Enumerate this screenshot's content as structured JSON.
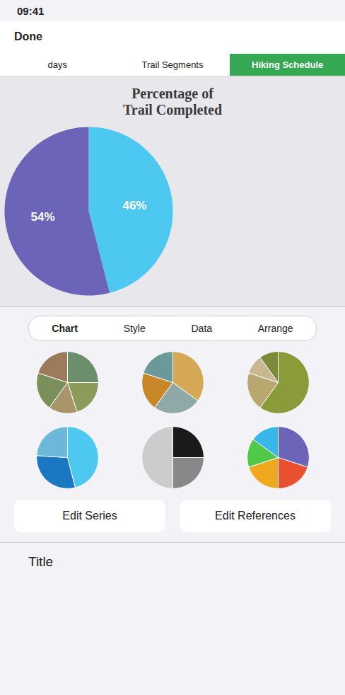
{
  "chart_data": [
    {
      "type": "pie",
      "title": "Percentage of\nTrail Completed",
      "values": [
        46,
        54
      ],
      "value_labels": [
        "46%",
        "54%"
      ],
      "colors": [
        "#4dc8f0",
        "#6b64b8"
      ],
      "data_labels": true,
      "annotations": [
        "09:41",
        "Done",
        "days",
        "Trail Segments",
        "Hiking Schedule",
        "Chart",
        "Style",
        "Data",
        "Arrange",
        "Edit Series",
        "Edit References",
        "Title"
      ]
    },
    {
      "type": "pie",
      "values": [
        25,
        20,
        15,
        20,
        20
      ],
      "colors": [
        "#6b8f6b",
        "#8b9b5a",
        "#a8956a",
        "#7a8f5a",
        "#9b7b5a"
      ]
    },
    {
      "type": "pie",
      "values": [
        35,
        25,
        20,
        20
      ],
      "colors": [
        "#d4a855",
        "#8fa8a8",
        "#c8882a",
        "#6b9898"
      ]
    },
    {
      "type": "pie",
      "values": [
        60,
        20,
        10,
        10
      ],
      "colors": [
        "#8b9b3a",
        "#b8a870",
        "#c8b890",
        "#7a8b3a"
      ]
    },
    {
      "type": "pie",
      "values": [
        46,
        30,
        24
      ],
      "colors": [
        "#4dc8f0",
        "#1a78c2",
        "#6bb8d8"
      ]
    },
    {
      "type": "pie",
      "values": [
        25,
        25,
        50
      ],
      "colors": [
        "#1a1a1a",
        "#888888",
        "#cccccc"
      ]
    },
    {
      "type": "pie",
      "values": [
        30,
        20,
        20,
        15,
        15
      ],
      "colors": [
        "#6b64b8",
        "#e85030",
        "#f0a820",
        "#50c848",
        "#38b8e8"
      ]
    }
  ]
}
